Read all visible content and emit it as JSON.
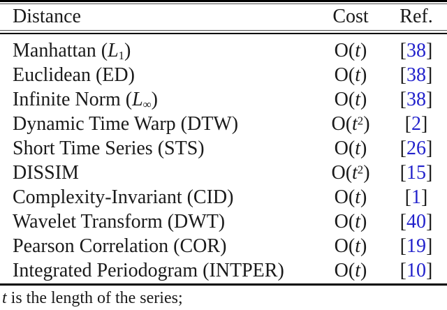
{
  "table": {
    "header": {
      "distance": "Distance",
      "cost": "Cost",
      "ref": "Ref."
    },
    "ref_bracket_open": "[",
    "ref_bracket_close": "]",
    "rows": [
      {
        "prefix": "Manhattan (",
        "mvar": "L",
        "msub": "1",
        "suffix": ")",
        "cost_pre": "O(",
        "cost_var": "t",
        "cost_sup": "",
        "cost_post": ")",
        "ref": "38"
      },
      {
        "prefix": "Euclidean (ED)",
        "mvar": "",
        "msub": "",
        "suffix": "",
        "cost_pre": "O(",
        "cost_var": "t",
        "cost_sup": "",
        "cost_post": ")",
        "ref": "38"
      },
      {
        "prefix": "Infinite Norm (",
        "mvar": "L",
        "msub": "∞",
        "suffix": ")",
        "cost_pre": "O(",
        "cost_var": "t",
        "cost_sup": "",
        "cost_post": ")",
        "ref": "38"
      },
      {
        "prefix": "Dynamic Time Warp (DTW)",
        "mvar": "",
        "msub": "",
        "suffix": "",
        "cost_pre": "O(",
        "cost_var": "t",
        "cost_sup": "2",
        "cost_post": ")",
        "ref": "2"
      },
      {
        "prefix": "Short Time Series (STS)",
        "mvar": "",
        "msub": "",
        "suffix": "",
        "cost_pre": "O(",
        "cost_var": "t",
        "cost_sup": "",
        "cost_post": ")",
        "ref": "26"
      },
      {
        "prefix": "DISSIM",
        "mvar": "",
        "msub": "",
        "suffix": "",
        "cost_pre": "O(",
        "cost_var": "t",
        "cost_sup": "2",
        "cost_post": ")",
        "ref": "15"
      },
      {
        "prefix": "Complexity-Invariant (CID)",
        "mvar": "",
        "msub": "",
        "suffix": "",
        "cost_pre": "O(",
        "cost_var": "t",
        "cost_sup": "",
        "cost_post": ")",
        "ref": "1"
      },
      {
        "prefix": "Wavelet Transform (DWT)",
        "mvar": "",
        "msub": "",
        "suffix": "",
        "cost_pre": "O(",
        "cost_var": "t",
        "cost_sup": "",
        "cost_post": ")",
        "ref": "40"
      },
      {
        "prefix": "Pearson Correlation (COR)",
        "mvar": "",
        "msub": "",
        "suffix": "",
        "cost_pre": "O(",
        "cost_var": "t",
        "cost_sup": "",
        "cost_post": ")",
        "ref": "19"
      },
      {
        "prefix": "Integrated Periodogram (INTPER)",
        "mvar": "",
        "msub": "",
        "suffix": "",
        "cost_pre": "O(",
        "cost_var": "t",
        "cost_sup": "",
        "cost_post": ")",
        "ref": "10"
      }
    ]
  },
  "footnote": {
    "var": "t",
    "text": " is the length of the series;"
  },
  "colors": {
    "citation_blue": "#2222cc",
    "text": "#1a1a1a",
    "rule": "#000000"
  }
}
